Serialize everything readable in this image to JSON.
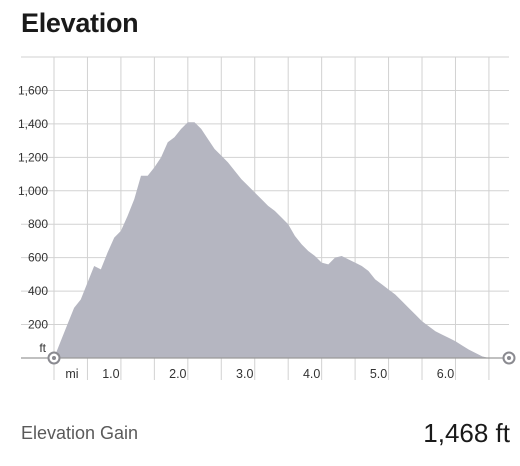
{
  "header": {
    "title": "Elevation"
  },
  "summary": {
    "label": "Elevation Gain",
    "value": "1,468 ft"
  },
  "colors": {
    "area_fill": "#b5b6c1",
    "grid": "#d2d2d2",
    "axis": "#9a9a9a"
  },
  "chart_data": {
    "type": "area",
    "title": "Elevation",
    "xlabel": "mi",
    "ylabel": "ft",
    "xlim": [
      0,
      6.8
    ],
    "ylim": [
      0,
      1800
    ],
    "x_ticks": [
      1.0,
      2.0,
      3.0,
      4.0,
      5.0,
      6.0
    ],
    "x_tick_labels": [
      "1.0",
      "2.0",
      "3.0",
      "4.0",
      "5.0",
      "6.0"
    ],
    "y_ticks": [
      200,
      400,
      600,
      800,
      1000,
      1200,
      1400,
      1600
    ],
    "y_tick_labels": [
      "200",
      "400",
      "600",
      "800",
      "1,000",
      "1,200",
      "1,400",
      "1,600"
    ],
    "grid": true,
    "markers": {
      "start": [
        0.0,
        0
      ],
      "end": [
        6.8,
        0
      ]
    },
    "series": [
      {
        "x": [
          0.0,
          0.1,
          0.2,
          0.3,
          0.4,
          0.5,
          0.6,
          0.7,
          0.8,
          0.9,
          1.0,
          1.1,
          1.2,
          1.3,
          1.4,
          1.5,
          1.6,
          1.7,
          1.8,
          1.9,
          2.0,
          2.1,
          2.2,
          2.3,
          2.4,
          2.5,
          2.6,
          2.7,
          2.8,
          2.9,
          3.0,
          3.1,
          3.2,
          3.3,
          3.4,
          3.5,
          3.6,
          3.7,
          3.8,
          3.9,
          4.0,
          4.1,
          4.2,
          4.3,
          4.4,
          4.5,
          4.6,
          4.7,
          4.8,
          4.9,
          5.0,
          5.1,
          5.2,
          5.3,
          5.4,
          5.5,
          5.6,
          5.7,
          5.8,
          5.9,
          6.0,
          6.1,
          6.2,
          6.3,
          6.4,
          6.5,
          6.6,
          6.7,
          6.8
        ],
        "values": [
          0,
          100,
          200,
          300,
          350,
          450,
          550,
          530,
          630,
          720,
          760,
          850,
          950,
          1090,
          1090,
          1140,
          1200,
          1290,
          1320,
          1370,
          1410,
          1410,
          1370,
          1310,
          1250,
          1210,
          1170,
          1120,
          1070,
          1030,
          990,
          950,
          910,
          880,
          840,
          800,
          730,
          680,
          640,
          610,
          570,
          560,
          600,
          610,
          590,
          570,
          550,
          520,
          470,
          440,
          410,
          380,
          340,
          300,
          260,
          220,
          190,
          160,
          140,
          120,
          100,
          75,
          50,
          30,
          10,
          0,
          0,
          0,
          0
        ]
      }
    ]
  }
}
